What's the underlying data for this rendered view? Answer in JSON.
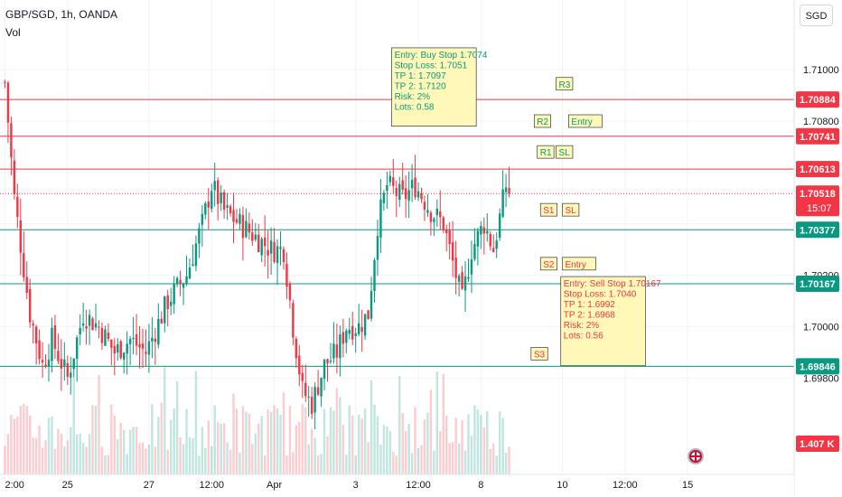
{
  "header": {
    "title": "GBP/SGD, 1h, OANDA",
    "volume_label": "Vol",
    "currency_button": "SGD"
  },
  "colors": {
    "up": "#089981",
    "down": "#f23645",
    "resistance": "#f23645",
    "support": "#089981",
    "note_bg": "#fff8b8",
    "note_border": "#000000",
    "flag": "#c8102e"
  },
  "chart_data": {
    "type": "candlestick",
    "symbol": "GBP/SGD",
    "interval": "1h",
    "source": "OANDA",
    "ylim": [
      1.6958,
      1.7125
    ],
    "y_ticks": [
      1.698,
      1.7,
      1.702,
      1.704,
      1.706,
      1.708,
      1.71
    ],
    "y_tick_labels": [
      "1.69800",
      "1.70000",
      "1.70200",
      "",
      "",
      "1.70800",
      "1.71000"
    ],
    "x_ticks": [
      {
        "x": 0,
        "label": "2:00"
      },
      {
        "x": 20,
        "label": "25"
      },
      {
        "x": 46,
        "label": "27"
      },
      {
        "x": 66,
        "label": "12:00"
      },
      {
        "x": 86,
        "label": "Apr"
      },
      {
        "x": 112,
        "label": "3"
      },
      {
        "x": 132,
        "label": "12:00"
      },
      {
        "x": 152,
        "label": "8"
      },
      {
        "x": 178,
        "label": "10"
      },
      {
        "x": 198,
        "label": "12:00"
      },
      {
        "x": 218,
        "label": "15"
      }
    ],
    "last_bar_index": 161,
    "x_visible": [
      -1,
      252
    ],
    "close_path": [
      [
        0,
        1.7095
      ],
      [
        3,
        1.705
      ],
      [
        8,
        1.7005
      ],
      [
        12,
        1.6985
      ],
      [
        15,
        1.6995
      ],
      [
        20,
        1.698
      ],
      [
        25,
        1.7005
      ],
      [
        30,
        1.7
      ],
      [
        35,
        1.699
      ],
      [
        40,
        1.6995
      ],
      [
        45,
        1.699
      ],
      [
        52,
        1.701
      ],
      [
        58,
        1.702
      ],
      [
        63,
        1.704
      ],
      [
        66,
        1.7055
      ],
      [
        70,
        1.7045
      ],
      [
        75,
        1.704
      ],
      [
        80,
        1.7035
      ],
      [
        85,
        1.703
      ],
      [
        89,
        1.703
      ],
      [
        92,
        1.7
      ],
      [
        95,
        1.6975
      ],
      [
        98,
        1.697
      ],
      [
        102,
        1.6985
      ],
      [
        106,
        1.699
      ],
      [
        109,
        1.7
      ],
      [
        113,
        1.7
      ],
      [
        116,
        1.7005
      ],
      [
        119,
        1.704
      ],
      [
        122,
        1.7055
      ],
      [
        127,
        1.705
      ],
      [
        131,
        1.7055
      ],
      [
        136,
        1.7045
      ],
      [
        140,
        1.704
      ],
      [
        143,
        1.7025
      ],
      [
        146,
        1.701
      ],
      [
        149,
        1.703
      ],
      [
        153,
        1.704
      ],
      [
        156,
        1.703
      ],
      [
        160,
        1.7055
      ],
      [
        161,
        1.7052
      ]
    ],
    "last_price": "1.70518",
    "countdown": "15:07",
    "volume_label_value": "1.407 K",
    "resistance_levels": [
      {
        "price": 1.70884,
        "label": "1.70884"
      },
      {
        "price": 1.70741,
        "label": "1.70741"
      },
      {
        "price": 1.70613,
        "label": "1.70613"
      }
    ],
    "support_levels": [
      {
        "price": 1.70377,
        "label": "1.70377"
      },
      {
        "price": 1.70167,
        "label": "1.70167"
      },
      {
        "price": 1.69846,
        "label": "1.69846"
      }
    ],
    "tags": [
      {
        "text": "R3",
        "x": 176,
        "price": 1.70945,
        "color": "#089981"
      },
      {
        "text": "R2",
        "x": 169,
        "price": 1.708,
        "color": "#089981"
      },
      {
        "text": "Entry",
        "x": 180,
        "price": 1.708,
        "color": "#089981"
      },
      {
        "text": "R1",
        "x": 170,
        "price": 1.7068,
        "color": "#089981"
      },
      {
        "text": "SL",
        "x": 176,
        "price": 1.7068,
        "color": "#089981"
      },
      {
        "text": "S1",
        "x": 171,
        "price": 1.70455,
        "color": "#f23645"
      },
      {
        "text": "SL",
        "x": 178,
        "price": 1.70455,
        "color": "#f23645"
      },
      {
        "text": "S2",
        "x": 171,
        "price": 1.70245,
        "color": "#f23645"
      },
      {
        "text": "Entry",
        "x": 178,
        "price": 1.70245,
        "color": "#f23645"
      },
      {
        "text": "S3",
        "x": 168,
        "price": 1.69895,
        "color": "#f23645"
      }
    ],
    "notes": [
      {
        "x0": 123.5,
        "x1": 150.5,
        "price_top": 1.71085,
        "price_bottom": 1.7078,
        "color": "#089981",
        "lines": [
          "Entry: Buy Stop 1.7074",
          "Stop Loss: 1.7051",
          "TP 1: 1.7097",
          "TP 2: 1.7120",
          "Risk: 2%",
          "Lots: 0.58"
        ]
      },
      {
        "x0": 177.5,
        "x1": 204.5,
        "price_top": 1.70195,
        "price_bottom": 1.69848,
        "color": "#f23645",
        "lines": [
          "Entry: Sell Stop 1.70167",
          "Stop Loss: 1.7040",
          "TP 1: 1.6992",
          "TP 2: 1.6968",
          "Risk: 2%",
          "Lots: 0.56"
        ]
      }
    ]
  }
}
